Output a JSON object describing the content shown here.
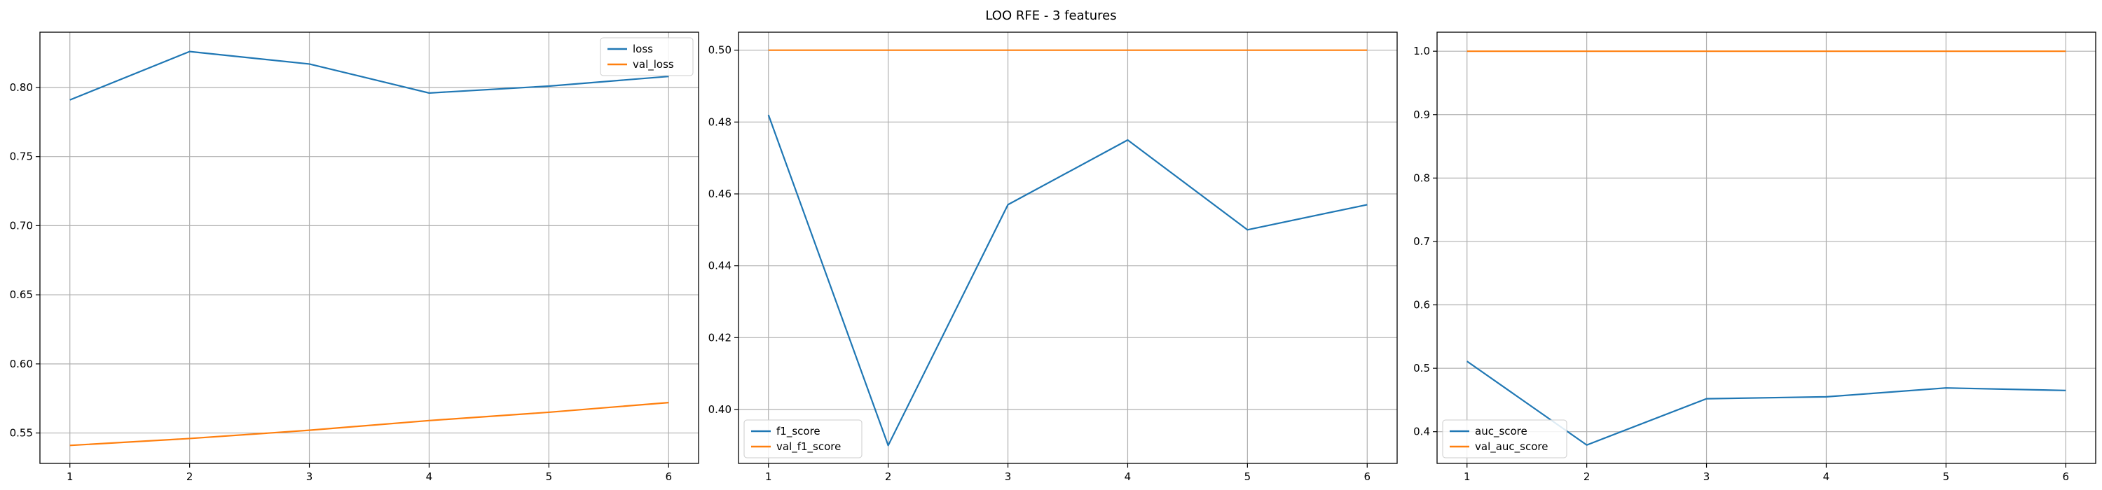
{
  "figure": {
    "title": "LOO RFE - 3 features"
  },
  "colors": {
    "series_primary": "#1f77b4",
    "series_secondary": "#ff7f0e",
    "grid": "#b0b0b0",
    "axes": "#000000"
  },
  "chart_data": [
    {
      "type": "line",
      "x": [
        1,
        2,
        3,
        4,
        5,
        6
      ],
      "xlim": [
        0.75,
        6.25
      ],
      "ylim": [
        0.528,
        0.84
      ],
      "xticks": [
        1,
        2,
        3,
        4,
        5,
        6
      ],
      "xtick_labels": [
        "1",
        "2",
        "3",
        "4",
        "5",
        "6"
      ],
      "yticks": [
        0.55,
        0.6,
        0.65,
        0.7,
        0.75,
        0.8
      ],
      "ytick_labels": [
        "0.55",
        "0.60",
        "0.65",
        "0.70",
        "0.75",
        "0.80"
      ],
      "grid": true,
      "legend_position": "upper right",
      "series": [
        {
          "name": "loss",
          "color": "#1f77b4",
          "values": [
            0.791,
            0.826,
            0.817,
            0.796,
            0.801,
            0.808
          ]
        },
        {
          "name": "val_loss",
          "color": "#ff7f0e",
          "values": [
            0.541,
            0.546,
            0.552,
            0.559,
            0.565,
            0.572
          ]
        }
      ]
    },
    {
      "type": "line",
      "x": [
        1,
        2,
        3,
        4,
        5,
        6
      ],
      "xlim": [
        0.75,
        6.25
      ],
      "ylim": [
        0.385,
        0.505
      ],
      "xticks": [
        1,
        2,
        3,
        4,
        5,
        6
      ],
      "xtick_labels": [
        "1",
        "2",
        "3",
        "4",
        "5",
        "6"
      ],
      "yticks": [
        0.4,
        0.42,
        0.44,
        0.46,
        0.48,
        0.5
      ],
      "ytick_labels": [
        "0.40",
        "0.42",
        "0.44",
        "0.46",
        "0.48",
        "0.50"
      ],
      "grid": true,
      "legend_position": "lower left",
      "series": [
        {
          "name": "f1_score",
          "color": "#1f77b4",
          "values": [
            0.482,
            0.39,
            0.457,
            0.475,
            0.45,
            0.457
          ]
        },
        {
          "name": "val_f1_score",
          "color": "#ff7f0e",
          "values": [
            0.5,
            0.5,
            0.5,
            0.5,
            0.5,
            0.5
          ]
        }
      ]
    },
    {
      "type": "line",
      "x": [
        1,
        2,
        3,
        4,
        5,
        6
      ],
      "xlim": [
        0.75,
        6.25
      ],
      "ylim": [
        0.35,
        1.03
      ],
      "xticks": [
        1,
        2,
        3,
        4,
        5,
        6
      ],
      "xtick_labels": [
        "1",
        "2",
        "3",
        "4",
        "5",
        "6"
      ],
      "yticks": [
        0.4,
        0.5,
        0.6,
        0.7,
        0.8,
        0.9,
        1.0
      ],
      "ytick_labels": [
        "0.4",
        "0.5",
        "0.6",
        "0.7",
        "0.8",
        "0.9",
        "1.0"
      ],
      "grid": true,
      "legend_position": "lower left",
      "series": [
        {
          "name": "auc_score",
          "color": "#1f77b4",
          "values": [
            0.511,
            0.379,
            0.452,
            0.455,
            0.469,
            0.465
          ]
        },
        {
          "name": "val_auc_score",
          "color": "#ff7f0e",
          "values": [
            1.0,
            1.0,
            1.0,
            1.0,
            1.0,
            1.0
          ]
        }
      ]
    }
  ]
}
